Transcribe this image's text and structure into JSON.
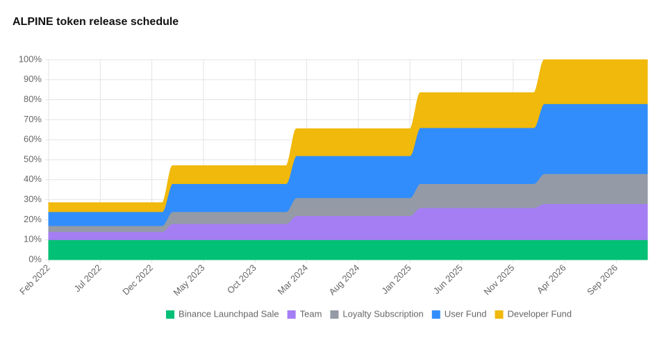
{
  "chart_data": {
    "type": "stacked-area",
    "title": "ALPINE token release schedule",
    "categories": [
      "Feb 2022",
      null,
      null,
      null,
      null,
      "Jul 2022",
      null,
      null,
      null,
      null,
      "Dec 2022",
      null,
      null,
      null,
      null,
      "May 2023",
      null,
      null,
      null,
      null,
      "Oct 2023",
      null,
      null,
      null,
      null,
      "Mar 2024",
      null,
      null,
      null,
      null,
      "Aug 2024",
      null,
      null,
      null,
      null,
      "Jan 2025",
      null,
      null,
      null,
      null,
      "Jun 2025",
      null,
      null,
      null,
      null,
      "Nov 2025",
      null,
      null,
      null,
      null,
      "Apr 2026",
      null,
      null,
      null,
      null,
      "Sep 2026",
      null,
      null,
      null
    ],
    "series": [
      {
        "name": "Binance Launchpad Sale",
        "color": "#02c076",
        "values": [
          10,
          10,
          10,
          10,
          10,
          10,
          10,
          10,
          10,
          10,
          10,
          10,
          10,
          10,
          10,
          10,
          10,
          10,
          10,
          10,
          10,
          10,
          10,
          10,
          10,
          10,
          10,
          10,
          10,
          10,
          10,
          10,
          10,
          10,
          10,
          10,
          10,
          10,
          10,
          10,
          10,
          10,
          10,
          10,
          10,
          10,
          10,
          10,
          10,
          10,
          10,
          10,
          10,
          10,
          10,
          10,
          10,
          10,
          10
        ]
      },
      {
        "name": "Team",
        "color": "#a57ef4",
        "values": [
          4,
          4,
          4,
          4,
          4,
          4,
          4,
          4,
          4,
          4,
          4,
          4,
          8,
          8,
          8,
          8,
          8,
          8,
          8,
          8,
          8,
          8,
          8,
          8,
          12,
          12,
          12,
          12,
          12,
          12,
          12,
          12,
          12,
          12,
          12,
          12,
          16,
          16,
          16,
          16,
          16,
          16,
          16,
          16,
          16,
          16,
          16,
          16,
          18,
          18,
          18,
          18,
          18,
          18,
          18,
          18,
          18,
          18,
          18
        ]
      },
      {
        "name": "Loyalty Subscription",
        "color": "#949ba6",
        "values": [
          3,
          3,
          3,
          3,
          3,
          3,
          3,
          3,
          3,
          3,
          3,
          3,
          6,
          6,
          6,
          6,
          6,
          6,
          6,
          6,
          6,
          6,
          6,
          6,
          9,
          9,
          9,
          9,
          9,
          9,
          9,
          9,
          9,
          9,
          9,
          9,
          12,
          12,
          12,
          12,
          12,
          12,
          12,
          12,
          12,
          12,
          12,
          12,
          15,
          15,
          15,
          15,
          15,
          15,
          15,
          15,
          15,
          15,
          15
        ]
      },
      {
        "name": "User Fund",
        "color": "#318dfc",
        "values": [
          7,
          7,
          7,
          7,
          7,
          7,
          7,
          7,
          7,
          7,
          7,
          7,
          14,
          14,
          14,
          14,
          14,
          14,
          14,
          14,
          14,
          14,
          14,
          14,
          21,
          21,
          21,
          21,
          21,
          21,
          21,
          21,
          21,
          21,
          21,
          21,
          28,
          28,
          28,
          28,
          28,
          28,
          28,
          28,
          28,
          28,
          28,
          28,
          35,
          35,
          35,
          35,
          35,
          35,
          35,
          35,
          35,
          35,
          35
        ]
      },
      {
        "name": "Developer Fund",
        "color": "#f0b90b",
        "values": [
          4.5,
          4.5,
          4.5,
          4.5,
          4.5,
          4.5,
          4.5,
          4.5,
          4.5,
          4.5,
          4.5,
          4.5,
          9,
          9,
          9,
          9,
          9,
          9,
          9,
          9,
          9,
          9,
          9,
          9,
          13.5,
          13.5,
          13.5,
          13.5,
          13.5,
          13.5,
          13.5,
          13.5,
          13.5,
          13.5,
          13.5,
          13.5,
          17.5,
          17.5,
          17.5,
          17.5,
          17.5,
          17.5,
          17.5,
          17.5,
          17.5,
          17.5,
          17.5,
          17.5,
          22,
          22,
          22,
          22,
          22,
          22,
          22,
          22,
          22,
          22,
          22
        ]
      }
    ],
    "ylim": [
      0,
      100
    ],
    "yticks": [
      {
        "value": 0,
        "label": "0%"
      },
      {
        "value": 10,
        "label": "10%"
      },
      {
        "value": 20,
        "label": "20%"
      },
      {
        "value": 30,
        "label": "30%"
      },
      {
        "value": 40,
        "label": "40%"
      },
      {
        "value": 50,
        "label": "50%"
      },
      {
        "value": 60,
        "label": "60%"
      },
      {
        "value": 70,
        "label": "70%"
      },
      {
        "value": 80,
        "label": "80%"
      },
      {
        "value": 90,
        "label": "90%"
      },
      {
        "value": 100,
        "label": "100%"
      }
    ],
    "grid": true,
    "legend": "bottom"
  }
}
